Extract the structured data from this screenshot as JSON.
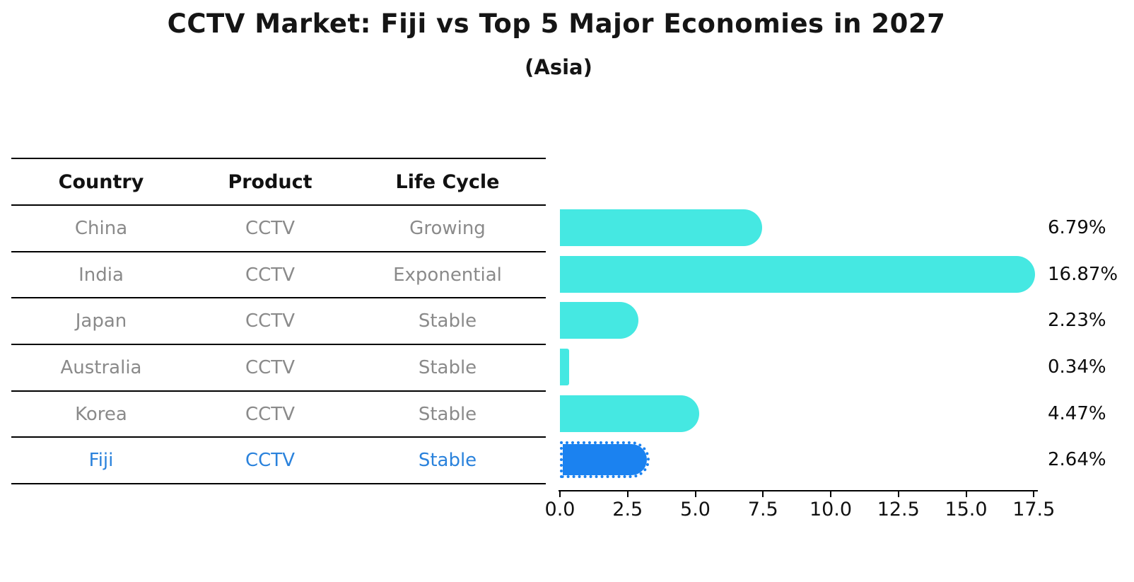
{
  "title": "CCTV Market: Fiji vs Top 5 Major Economies in 2027",
  "subtitle": "(Asia)",
  "table": {
    "headers": [
      "Country",
      "Product",
      "Life Cycle"
    ],
    "rows": [
      {
        "country": "China",
        "product": "CCTV",
        "life_cycle": "Growing",
        "highlight": false
      },
      {
        "country": "India",
        "product": "CCTV",
        "life_cycle": "Exponential",
        "highlight": false
      },
      {
        "country": "Japan",
        "product": "CCTV",
        "life_cycle": "Stable",
        "highlight": false
      },
      {
        "country": "Australia",
        "product": "CCTV",
        "life_cycle": "Stable",
        "highlight": false
      },
      {
        "country": "Korea",
        "product": "CCTV",
        "life_cycle": "Stable",
        "highlight": true
      }
    ],
    "highlight_row": {
      "country": "Fiji",
      "product": "CCTV",
      "life_cycle": "Stable"
    }
  },
  "chart_data": {
    "type": "bar",
    "orientation": "horizontal",
    "title": "CCTV Market: Fiji vs Top 5 Major Economies in 2027",
    "subtitle": "(Asia)",
    "categories": [
      "China",
      "India",
      "Japan",
      "Australia",
      "Korea",
      "Fiji"
    ],
    "values": [
      6.79,
      16.87,
      2.23,
      0.34,
      4.47,
      2.64
    ],
    "value_labels": [
      "6.79%",
      "16.87%",
      "2.23%",
      "0.34%",
      "4.47%",
      "2.64%"
    ],
    "xlim": [
      0,
      17.5
    ],
    "x_ticks": [
      0.0,
      2.5,
      5.0,
      7.5,
      10.0,
      12.5,
      15.0,
      17.5
    ],
    "x_tick_labels": [
      "0.0",
      "2.5",
      "5.0",
      "7.5",
      "10.0",
      "12.5",
      "15.0",
      "17.5"
    ],
    "grid": false,
    "legend": false,
    "bar_color": "#45e8e2",
    "highlight_bar_color": "#1b82f0",
    "highlight_index": 5,
    "highlight_edge_style": "dotted"
  },
  "colors": {
    "bar_cyan": "#45e8e2",
    "bar_blue": "#1b82f0",
    "highlight_text": "#2a82dc",
    "muted_text": "#8a8a8a",
    "heading_text": "#111111",
    "axis": "#000000"
  }
}
